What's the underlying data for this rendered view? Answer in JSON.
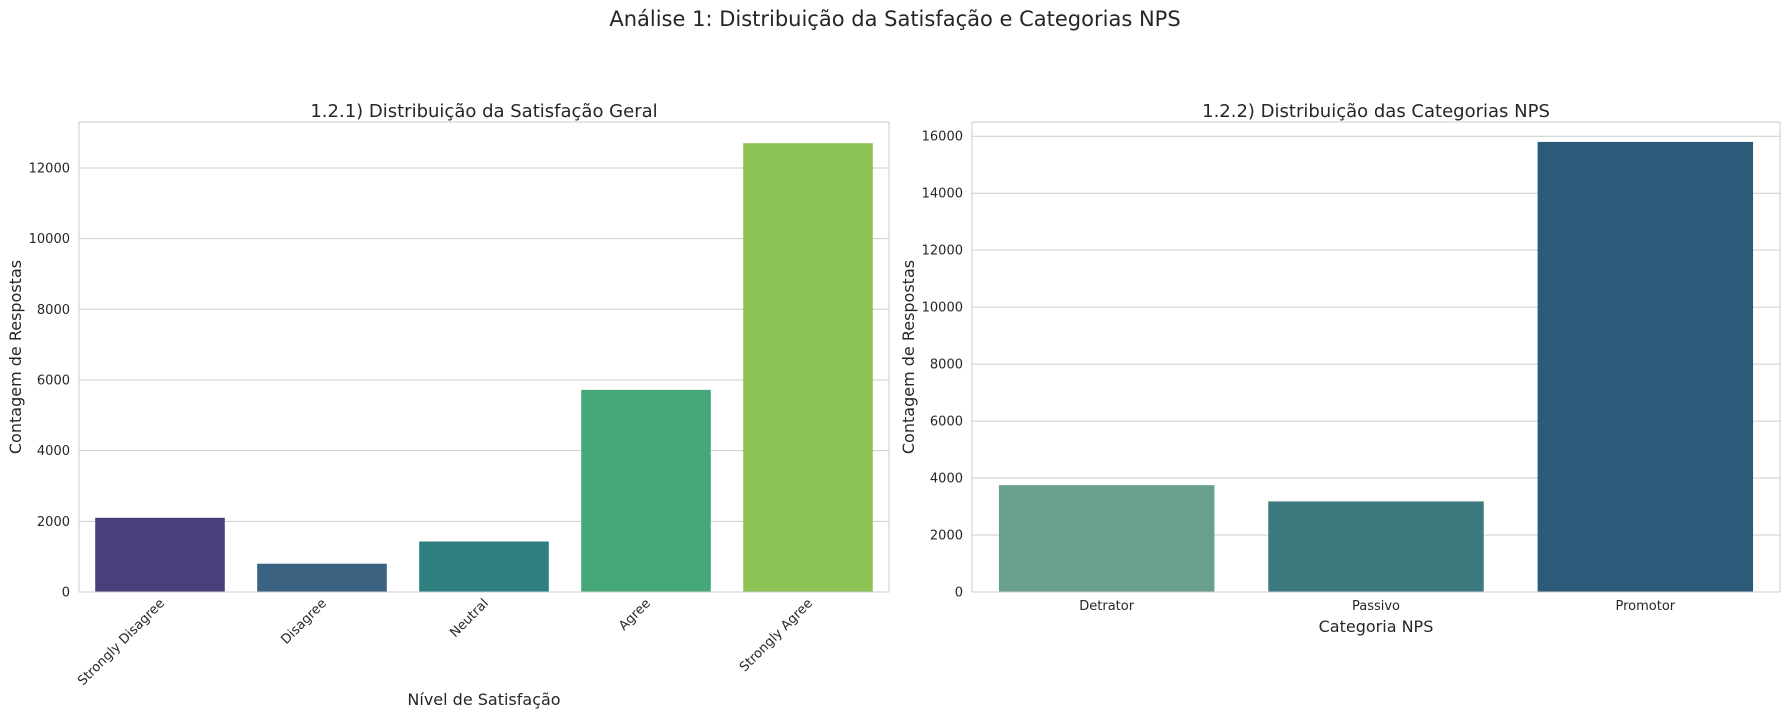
{
  "figure": {
    "suptitle": "Análise 1: Distribuição da Satisfação e Categorias NPS"
  },
  "chart_data": [
    {
      "type": "bar",
      "title": "1.2.1) Distribuição da Satisfação Geral",
      "xlabel": "Nível de Satisfação",
      "ylabel": "Contagem de Respostas",
      "categories": [
        "Strongly Disagree",
        "Disagree",
        "Neutral",
        "Agree",
        "Strongly Agree"
      ],
      "values": [
        2100,
        800,
        1430,
        5720,
        12700
      ],
      "colors": [
        "#4a3f7a",
        "#3b6280",
        "#2e8080",
        "#46a878",
        "#8dc455"
      ],
      "yticks": [
        0,
        2000,
        4000,
        6000,
        8000,
        10000,
        12000
      ],
      "ylim": [
        0,
        13300
      ],
      "grid": true,
      "xtick_rotation": 45
    },
    {
      "type": "bar",
      "title": "1.2.2) Distribuição das Categorias NPS",
      "xlabel": "Categoria NPS",
      "ylabel": "Contagem de Respostas",
      "categories": [
        "Detrator",
        "Passivo",
        "Promotor"
      ],
      "values": [
        3750,
        3180,
        15800
      ],
      "colors": [
        "#68a08c",
        "#3d7a80",
        "#2b5b78"
      ],
      "yticks": [
        0,
        2000,
        4000,
        6000,
        8000,
        10000,
        12000,
        14000,
        16000
      ],
      "ylim": [
        0,
        16500
      ],
      "grid": true,
      "xtick_rotation": 0
    }
  ]
}
